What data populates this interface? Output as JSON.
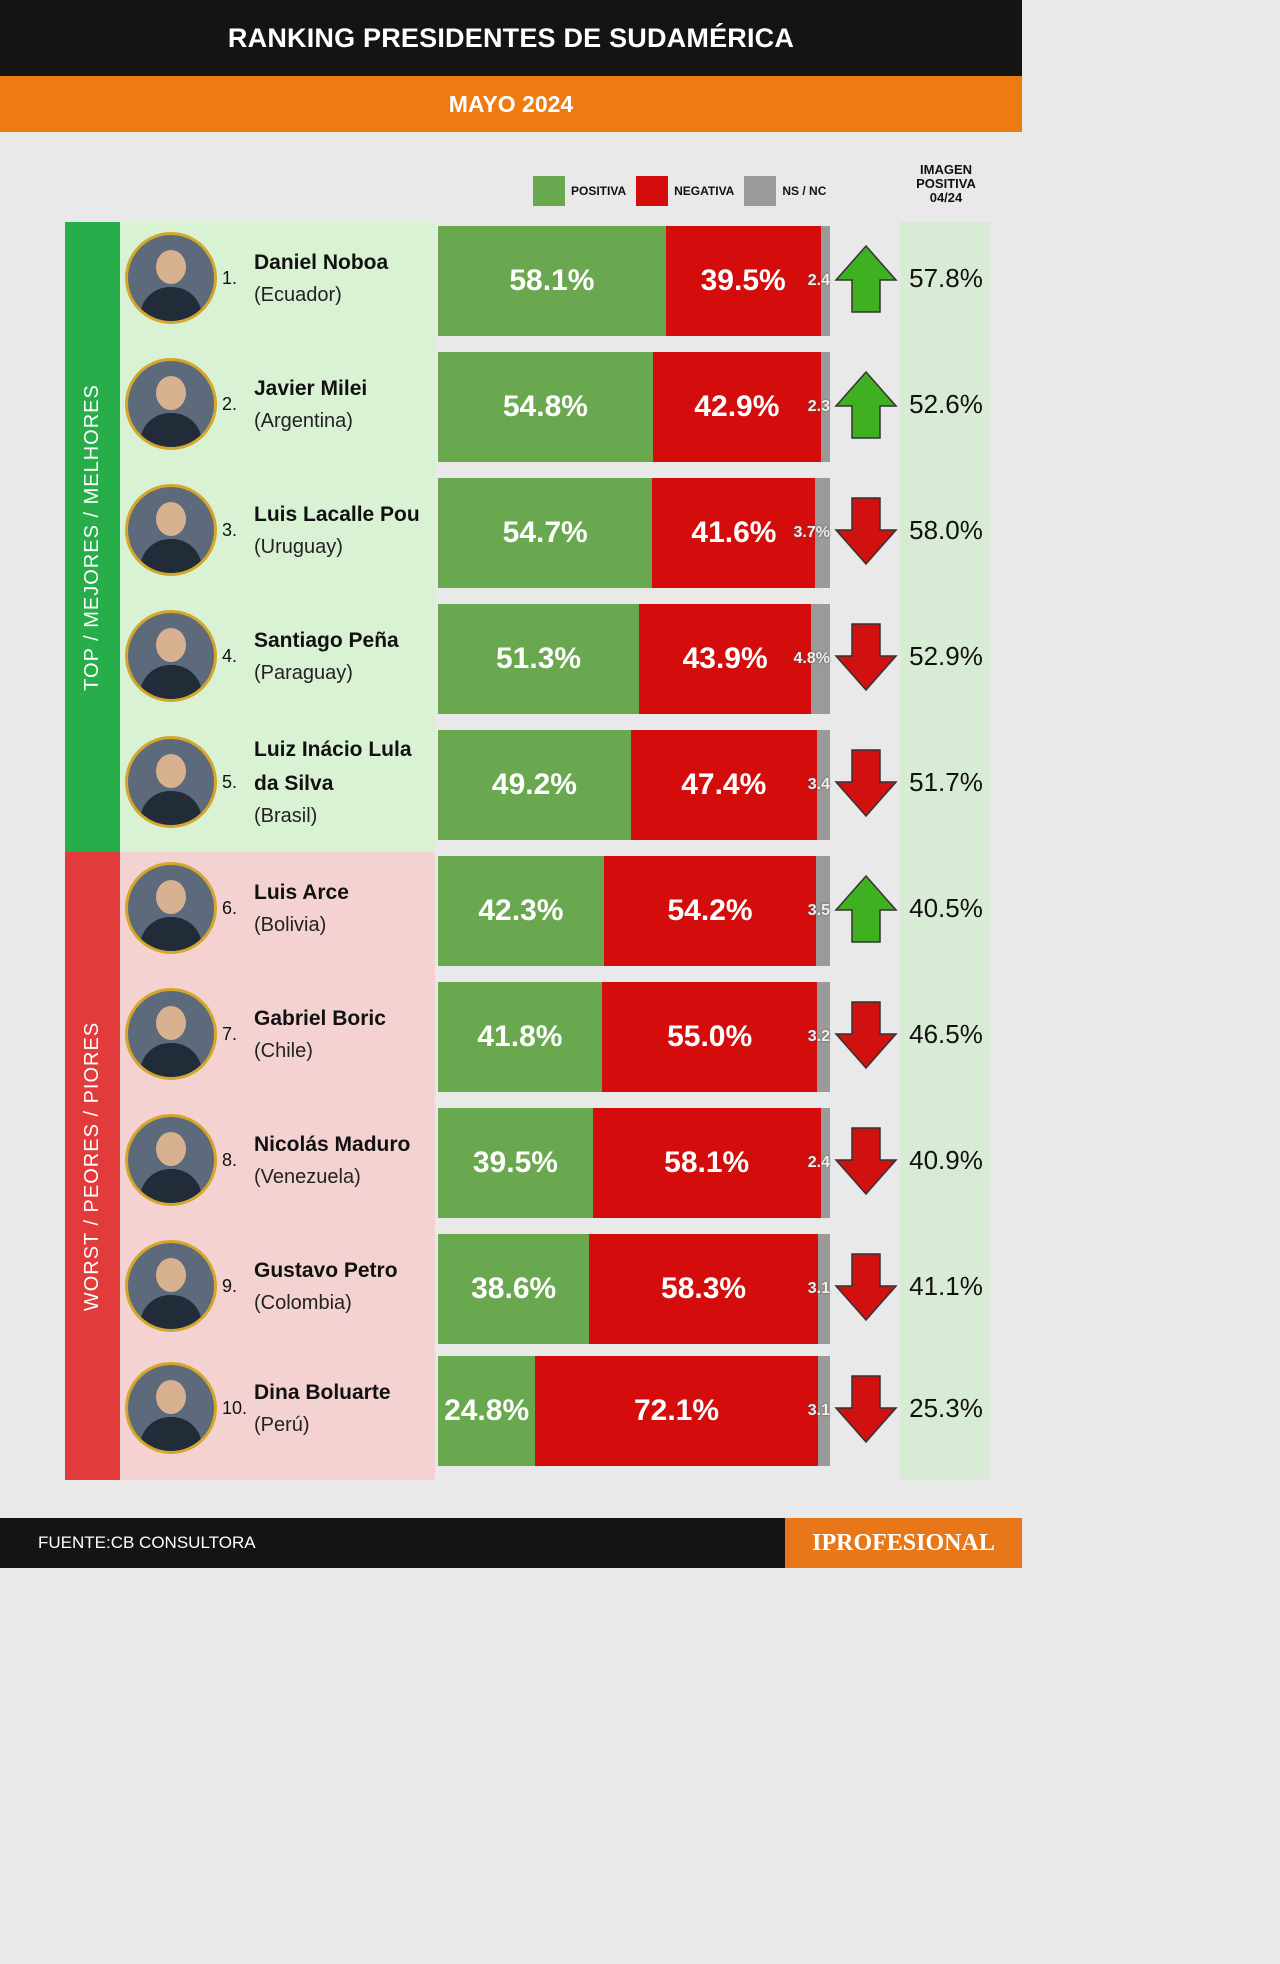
{
  "header": {
    "title": "RANKING PRESIDENTES DE SUDAMÉRICA",
    "subtitle": "MAYO 2024"
  },
  "legend": [
    {
      "label": "POSITIVA",
      "color": "#6aa84f"
    },
    {
      "label": "NEGATIVA",
      "color": "#d40c0c"
    },
    {
      "label": "NS / NC",
      "color": "#9a9a9a"
    }
  ],
  "prev_header": [
    "IMAGEN",
    "POSITIVA",
    "04/24"
  ],
  "groups": {
    "top": {
      "label": "TOP / MEJORES / MELHORES",
      "side_color": "#27ae4a",
      "bg_color": "#d9f2d4"
    },
    "worst": {
      "label": "WORST / PEORES / PIORES",
      "side_color": "#e23b3b",
      "bg_color": "#f5d2d2"
    }
  },
  "chart_data": {
    "type": "bar",
    "stacked": true,
    "horizontal": true,
    "series_names": [
      "POSITIVA",
      "NEGATIVA",
      "NS / NC"
    ],
    "rows": [
      {
        "rank": "1.",
        "name": "Daniel Noboa",
        "country": "(Ecuador)",
        "positive": 58.1,
        "negative": 39.5,
        "nsnc": 2.4,
        "positive_label": "58.1%",
        "negative_label": "39.5%",
        "nsnc_label": "2.4",
        "trend": "up",
        "prev_label": "57.8%"
      },
      {
        "rank": "2.",
        "name": "Javier Milei",
        "country": "(Argentina)",
        "positive": 54.8,
        "negative": 42.9,
        "nsnc": 2.3,
        "positive_label": "54.8%",
        "negative_label": "42.9%",
        "nsnc_label": "2.3",
        "trend": "up",
        "prev_label": "52.6%"
      },
      {
        "rank": "3.",
        "name": "Luis Lacalle Pou",
        "country": "(Uruguay)",
        "positive": 54.7,
        "negative": 41.6,
        "nsnc": 3.7,
        "positive_label": "54.7%",
        "negative_label": "41.6%",
        "nsnc_label": "3.7%",
        "trend": "down",
        "prev_label": "58.0%"
      },
      {
        "rank": "4.",
        "name": "Santiago Peña",
        "country": "(Paraguay)",
        "positive": 51.3,
        "negative": 43.9,
        "nsnc": 4.8,
        "positive_label": "51.3%",
        "negative_label": "43.9%",
        "nsnc_label": "4.8%",
        "trend": "down",
        "prev_label": "52.9%"
      },
      {
        "rank": "5.",
        "name": "Luiz Inácio Lula da Silva",
        "country": "(Brasil)",
        "positive": 49.2,
        "negative": 47.4,
        "nsnc": 3.4,
        "positive_label": "49.2%",
        "negative_label": "47.4%",
        "nsnc_label": "3.4",
        "trend": "down",
        "prev_label": "51.7%"
      },
      {
        "rank": "6.",
        "name": "Luis Arce",
        "country": "(Bolivia)",
        "positive": 42.3,
        "negative": 54.2,
        "nsnc": 3.5,
        "positive_label": "42.3%",
        "negative_label": "54.2%",
        "nsnc_label": "3.5",
        "trend": "up",
        "prev_label": "40.5%"
      },
      {
        "rank": "7.",
        "name": "Gabriel Boric",
        "country": "(Chile)",
        "positive": 41.8,
        "negative": 55.0,
        "nsnc": 3.2,
        "positive_label": "41.8%",
        "negative_label": "55.0%",
        "nsnc_label": "3.2",
        "trend": "down",
        "prev_label": "46.5%"
      },
      {
        "rank": "8.",
        "name": "Nicolás Maduro",
        "country": "(Venezuela)",
        "positive": 39.5,
        "negative": 58.1,
        "nsnc": 2.4,
        "positive_label": "39.5%",
        "negative_label": "58.1%",
        "nsnc_label": "2.4",
        "trend": "down",
        "prev_label": "40.9%"
      },
      {
        "rank": "9.",
        "name": "Gustavo Petro",
        "country": "(Colombia)",
        "positive": 38.6,
        "negative": 58.3,
        "nsnc": 3.1,
        "positive_label": "38.6%",
        "negative_label": "58.3%",
        "nsnc_label": "3.1",
        "trend": "down",
        "prev_label": "41.1%"
      },
      {
        "rank": "10.",
        "name": "Dina Boluarte",
        "country": "(Perú)",
        "positive": 24.8,
        "negative": 72.1,
        "nsnc": 3.1,
        "positive_label": "24.8%",
        "negative_label": "72.1%",
        "nsnc_label": "3.1",
        "trend": "down",
        "prev_label": "25.3%"
      }
    ]
  },
  "trend_colors": {
    "up": "#3fb020",
    "down": "#d11010"
  },
  "footer": {
    "source": "FUENTE:CB CONSULTORA",
    "brand": "IPROFESIONAL"
  }
}
